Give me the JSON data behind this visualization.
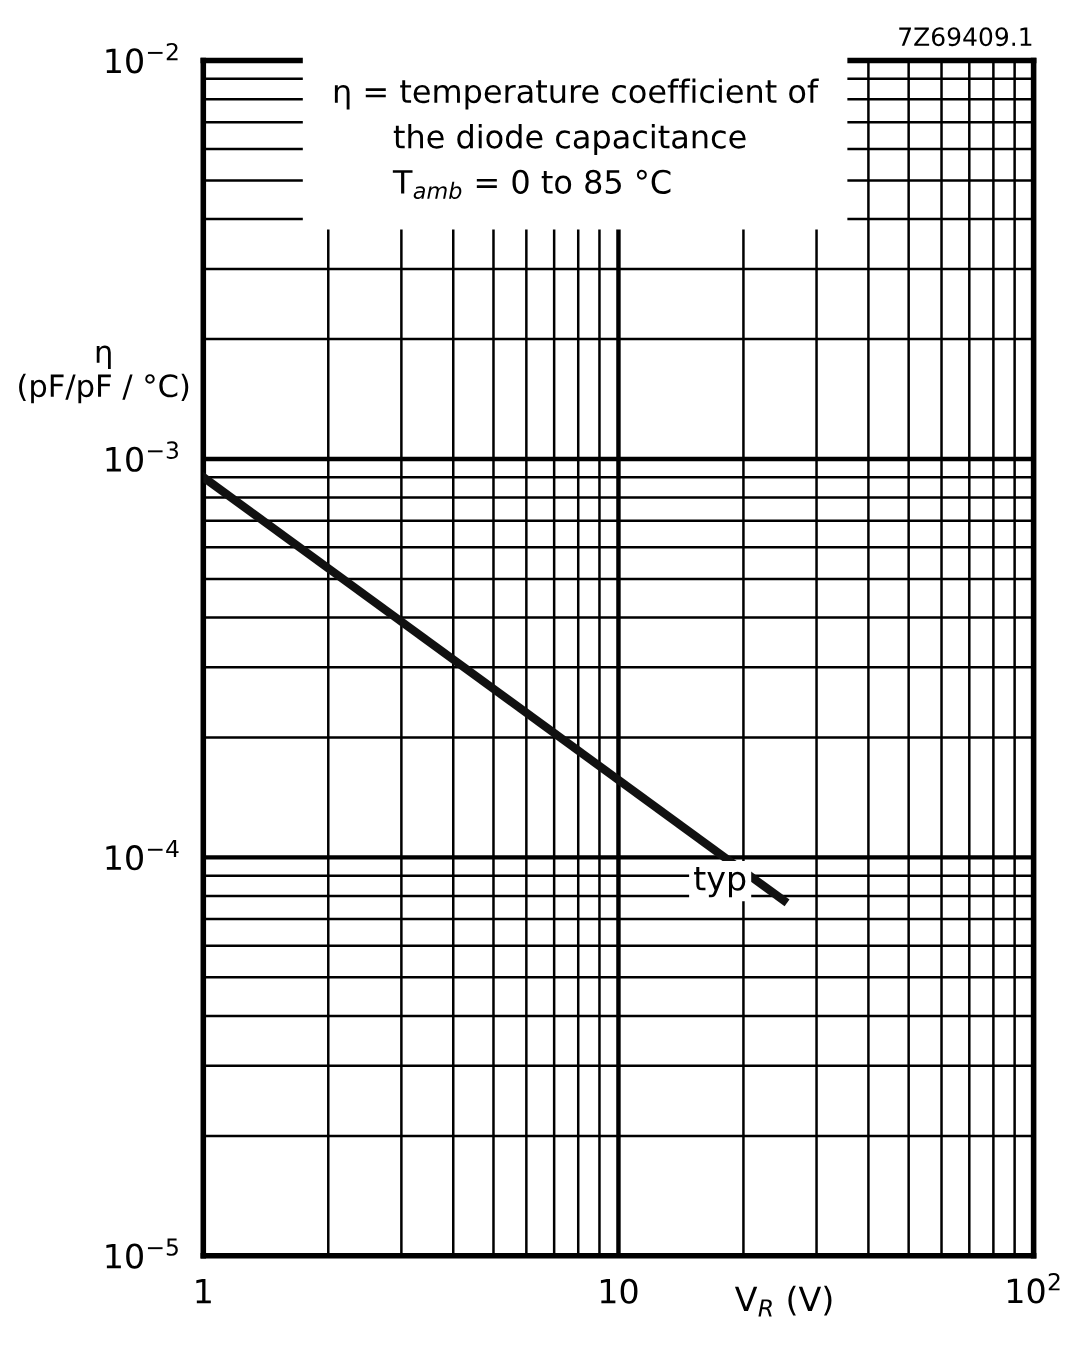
{
  "chart_data": {
    "type": "line",
    "xlabel": "V$_{R}$ (V)",
    "ylabel": "η\n(pF/pF / °C)",
    "log": "xy",
    "x": [
      1,
      25
    ],
    "series": [
      {
        "color": "#111111",
        "values": [
          0.0009,
          7.8e-05
        ]
      }
    ],
    "xlim": [
      1,
      100
    ],
    "ylim": [
      1e-05,
      0.01
    ],
    "xticks": [
      1,
      10,
      {
        "value": 100,
        "label": "10$^{2}$"
      }
    ],
    "yticks": [
      {
        "value": 1e-05,
        "label": "10$^{−5}$"
      },
      {
        "value": 0.0001,
        "label": "10$^{−4}$"
      },
      {
        "value": 0.001,
        "label": "10$^{−3}$"
      },
      {
        "value": 0.01,
        "label": "10$^{−2}$"
      }
    ],
    "grid": true,
    "marker": "none",
    "line_style": "solid",
    "annotations": [
      "typ",
      "η = temperature coefficient of\n      the diode capacitance\n      T$_{amb}$ = 0 to 85 °C",
      "7Z69409.1"
    ]
  }
}
